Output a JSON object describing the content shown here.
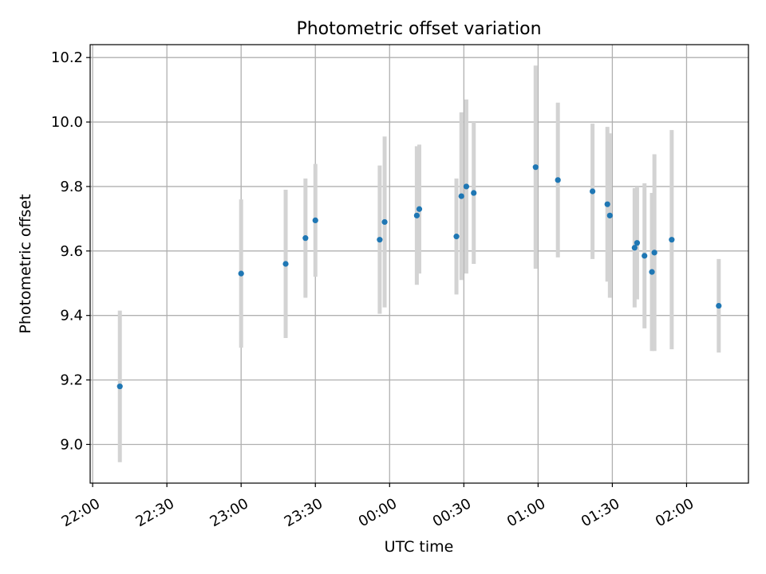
{
  "chart_data": {
    "type": "scatter",
    "title": "Photometric offset variation",
    "xlabel": "UTC time",
    "ylabel": "Photometric offset",
    "x_ticks": [
      "22:00",
      "22:30",
      "23:00",
      "23:30",
      "00:00",
      "00:30",
      "01:00",
      "01:30",
      "02:00"
    ],
    "y_ticks": [
      "9.0",
      "9.2",
      "9.4",
      "9.6",
      "9.8",
      "10.0",
      "10.2"
    ],
    "xlim": [
      "21:59",
      "02:25"
    ],
    "ylim": [
      8.88,
      10.24
    ],
    "grid": true,
    "colors": {
      "point": "#1f77b4",
      "errorbar": "#d3d3d3",
      "grid": "#b0b0b0"
    },
    "series": [
      {
        "points": [
          {
            "t": "22:11",
            "y": 9.18,
            "err": 0.235
          },
          {
            "t": "23:00",
            "y": 9.53,
            "err": 0.23
          },
          {
            "t": "23:18",
            "y": 9.56,
            "err": 0.23
          },
          {
            "t": "23:26",
            "y": 9.64,
            "err": 0.185
          },
          {
            "t": "23:30",
            "y": 9.695,
            "err": 0.175
          },
          {
            "t": "23:56",
            "y": 9.635,
            "err": 0.23
          },
          {
            "t": "23:58",
            "y": 9.69,
            "err": 0.265
          },
          {
            "t": "00:11",
            "y": 9.71,
            "err": 0.215
          },
          {
            "t": "00:12",
            "y": 9.73,
            "err": 0.2
          },
          {
            "t": "00:27",
            "y": 9.645,
            "err": 0.18
          },
          {
            "t": "00:29",
            "y": 9.77,
            "err": 0.26
          },
          {
            "t": "00:31",
            "y": 9.8,
            "err": 0.27
          },
          {
            "t": "00:34",
            "y": 9.78,
            "err": 0.22
          },
          {
            "t": "00:59",
            "y": 9.86,
            "err": 0.315
          },
          {
            "t": "01:08",
            "y": 9.82,
            "err": 0.24
          },
          {
            "t": "01:22",
            "y": 9.785,
            "err": 0.21
          },
          {
            "t": "01:28",
            "y": 9.745,
            "err": 0.24
          },
          {
            "t": "01:29",
            "y": 9.71,
            "err": 0.255
          },
          {
            "t": "01:39",
            "y": 9.61,
            "err": 0.185
          },
          {
            "t": "01:40",
            "y": 9.625,
            "err": 0.175
          },
          {
            "t": "01:43",
            "y": 9.585,
            "err": 0.225
          },
          {
            "t": "01:46",
            "y": 9.535,
            "err": 0.245
          },
          {
            "t": "01:47",
            "y": 9.595,
            "err": 0.305
          },
          {
            "t": "01:54",
            "y": 9.635,
            "err": 0.34
          },
          {
            "t": "02:13",
            "y": 9.43,
            "err": 0.145
          }
        ]
      }
    ]
  }
}
